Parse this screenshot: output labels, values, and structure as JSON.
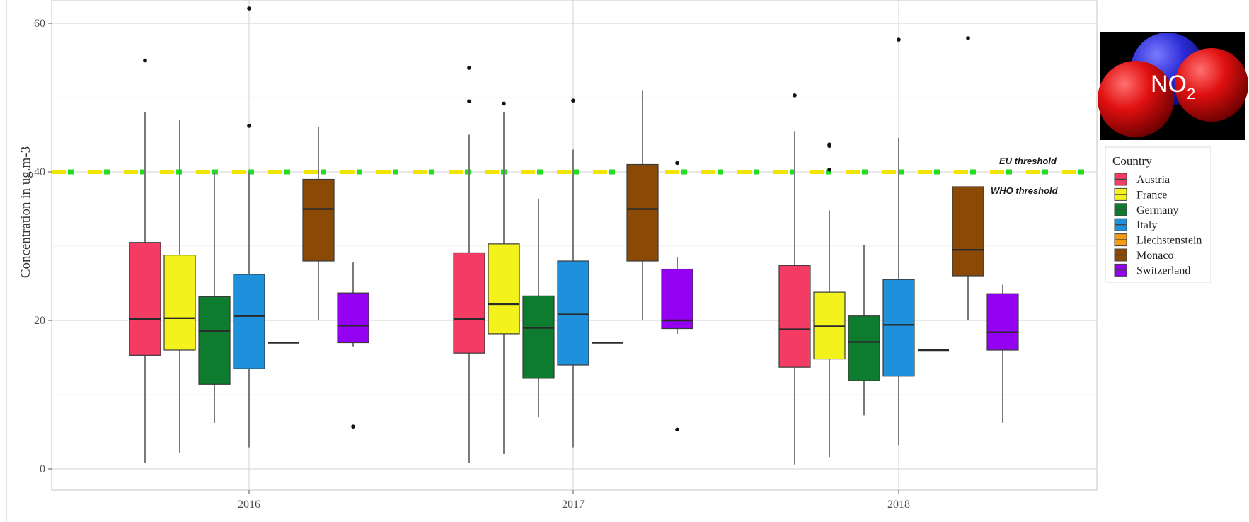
{
  "badge": {
    "main": "NO",
    "sub": "2"
  },
  "chart_data": {
    "type": "boxplot",
    "ylabel": "Concentration in ug.m-3",
    "xlabel": "",
    "ylim": [
      -3,
      63
    ],
    "y_ticks": [
      0,
      20,
      40,
      60
    ],
    "grid": true,
    "legend": {
      "title": "Country",
      "placement": "right"
    },
    "categories": [
      "2016",
      "2017",
      "2018"
    ],
    "thresholds": [
      {
        "label": "EU threshold",
        "value": 40,
        "colors": [
          "#f2e600",
          "#22dd22"
        ]
      },
      {
        "label": "WHO threshold",
        "value": 40,
        "colors": [
          "#f2e600",
          "#22dd22"
        ]
      }
    ],
    "series": [
      {
        "name": "Austria",
        "color": "#f43b63",
        "boxes": [
          {
            "min": 0.8,
            "q1": 15.3,
            "median": 20.2,
            "q3": 30.5,
            "max": 48,
            "outliers": [
              55
            ]
          },
          {
            "min": 0.8,
            "q1": 15.6,
            "median": 20.2,
            "q3": 29.1,
            "max": 45,
            "outliers": [
              49.5,
              54
            ]
          },
          {
            "min": 0.6,
            "q1": 13.7,
            "median": 18.8,
            "q3": 27.4,
            "max": 45.5,
            "outliers": [
              50.3
            ]
          }
        ]
      },
      {
        "name": "France",
        "color": "#f3f21c",
        "boxes": [
          {
            "min": 2.2,
            "q1": 16,
            "median": 20.3,
            "q3": 28.8,
            "max": 47,
            "outliers": []
          },
          {
            "min": 2,
            "q1": 18.2,
            "median": 22.2,
            "q3": 30.3,
            "max": 48,
            "outliers": [
              49.2
            ]
          },
          {
            "min": 1.6,
            "q1": 14.8,
            "median": 19.2,
            "q3": 23.8,
            "max": 34.8,
            "outliers": [
              40.3,
              43.5,
              43.7
            ]
          }
        ]
      },
      {
        "name": "Germany",
        "color": "#0d7c2e",
        "boxes": [
          {
            "min": 6.2,
            "q1": 11.4,
            "median": 18.6,
            "q3": 23.2,
            "max": 40,
            "outliers": []
          },
          {
            "min": 7,
            "q1": 12.2,
            "median": 19,
            "q3": 23.3,
            "max": 36.3,
            "outliers": []
          },
          {
            "min": 7.2,
            "q1": 11.9,
            "median": 17.1,
            "q3": 20.6,
            "max": 30.2,
            "outliers": []
          }
        ]
      },
      {
        "name": "Italy",
        "color": "#1e90dc",
        "boxes": [
          {
            "min": 2.9,
            "q1": 13.5,
            "median": 20.6,
            "q3": 26.2,
            "max": 40,
            "outliers": [
              46.2,
              62
            ]
          },
          {
            "min": 2.9,
            "q1": 14,
            "median": 20.8,
            "q3": 28,
            "max": 43,
            "outliers": [
              49.6
            ]
          },
          {
            "min": 3.2,
            "q1": 12.5,
            "median": 19.4,
            "q3": 25.5,
            "max": 44.6,
            "outliers": [
              57.8
            ]
          }
        ]
      },
      {
        "name": "Liechstenstein",
        "color": "#f59a12",
        "boxes": [
          {
            "min": 17,
            "q1": 17,
            "median": 17,
            "q3": 17,
            "max": 17,
            "outliers": []
          },
          {
            "min": 17,
            "q1": 17,
            "median": 17,
            "q3": 17,
            "max": 17,
            "outliers": []
          },
          {
            "min": 16,
            "q1": 16,
            "median": 16,
            "q3": 16,
            "max": 16,
            "outliers": []
          }
        ]
      },
      {
        "name": "Monaco",
        "color": "#8a4a05",
        "boxes": [
          {
            "min": 20,
            "q1": 28,
            "median": 35,
            "q3": 39,
            "max": 46,
            "outliers": []
          },
          {
            "min": 20,
            "q1": 28,
            "median": 35,
            "q3": 41,
            "max": 51,
            "outliers": []
          },
          {
            "min": 20,
            "q1": 26,
            "median": 29.5,
            "q3": 38,
            "max": 38,
            "outliers": [
              58
            ]
          }
        ]
      },
      {
        "name": "Switzerland",
        "color": "#9400f2",
        "boxes": [
          {
            "min": 16.5,
            "q1": 17,
            "median": 19.3,
            "q3": 23.7,
            "max": 27.8,
            "outliers": [
              5.7
            ]
          },
          {
            "min": 18.2,
            "q1": 18.9,
            "median": 20,
            "q3": 26.9,
            "max": 28.5,
            "outliers": [
              5.3,
              41.2
            ]
          },
          {
            "min": 6.2,
            "q1": 16,
            "median": 18.4,
            "q3": 23.6,
            "max": 24.8,
            "outliers": []
          }
        ]
      }
    ]
  }
}
